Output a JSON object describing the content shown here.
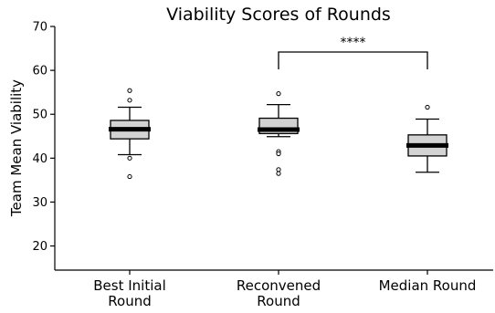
{
  "chart_data": {
    "type": "box",
    "title": "Viability Scores of Rounds",
    "xlabel": "",
    "ylabel": "Team Mean Viability",
    "ylim": [
      14.5,
      70
    ],
    "yticks": [
      20,
      30,
      40,
      50,
      60,
      70
    ],
    "grid": false,
    "categories": [
      [
        "Best Initial",
        "Round"
      ],
      [
        "Reconvened",
        "Round"
      ],
      [
        "Median Round"
      ]
    ],
    "boxes": [
      {
        "whisker_low": 40.8,
        "q1": 44.4,
        "median": 46.6,
        "q3": 48.6,
        "whisker_high": 51.6,
        "outliers": [
          55.4,
          53.2,
          40.0,
          35.8
        ]
      },
      {
        "whisker_low": 44.9,
        "q1": 45.6,
        "median": 46.5,
        "q3": 49.1,
        "whisker_high": 52.2,
        "outliers": [
          54.7,
          41.5,
          41.0,
          37.4,
          36.5
        ]
      },
      {
        "whisker_low": 36.8,
        "q1": 40.5,
        "median": 42.9,
        "q3": 45.3,
        "whisker_high": 48.9,
        "outliers": [
          51.6
        ]
      }
    ],
    "box_fill": "#d3d3d3",
    "significance": {
      "from": 1,
      "to": 2,
      "label": "****"
    }
  }
}
